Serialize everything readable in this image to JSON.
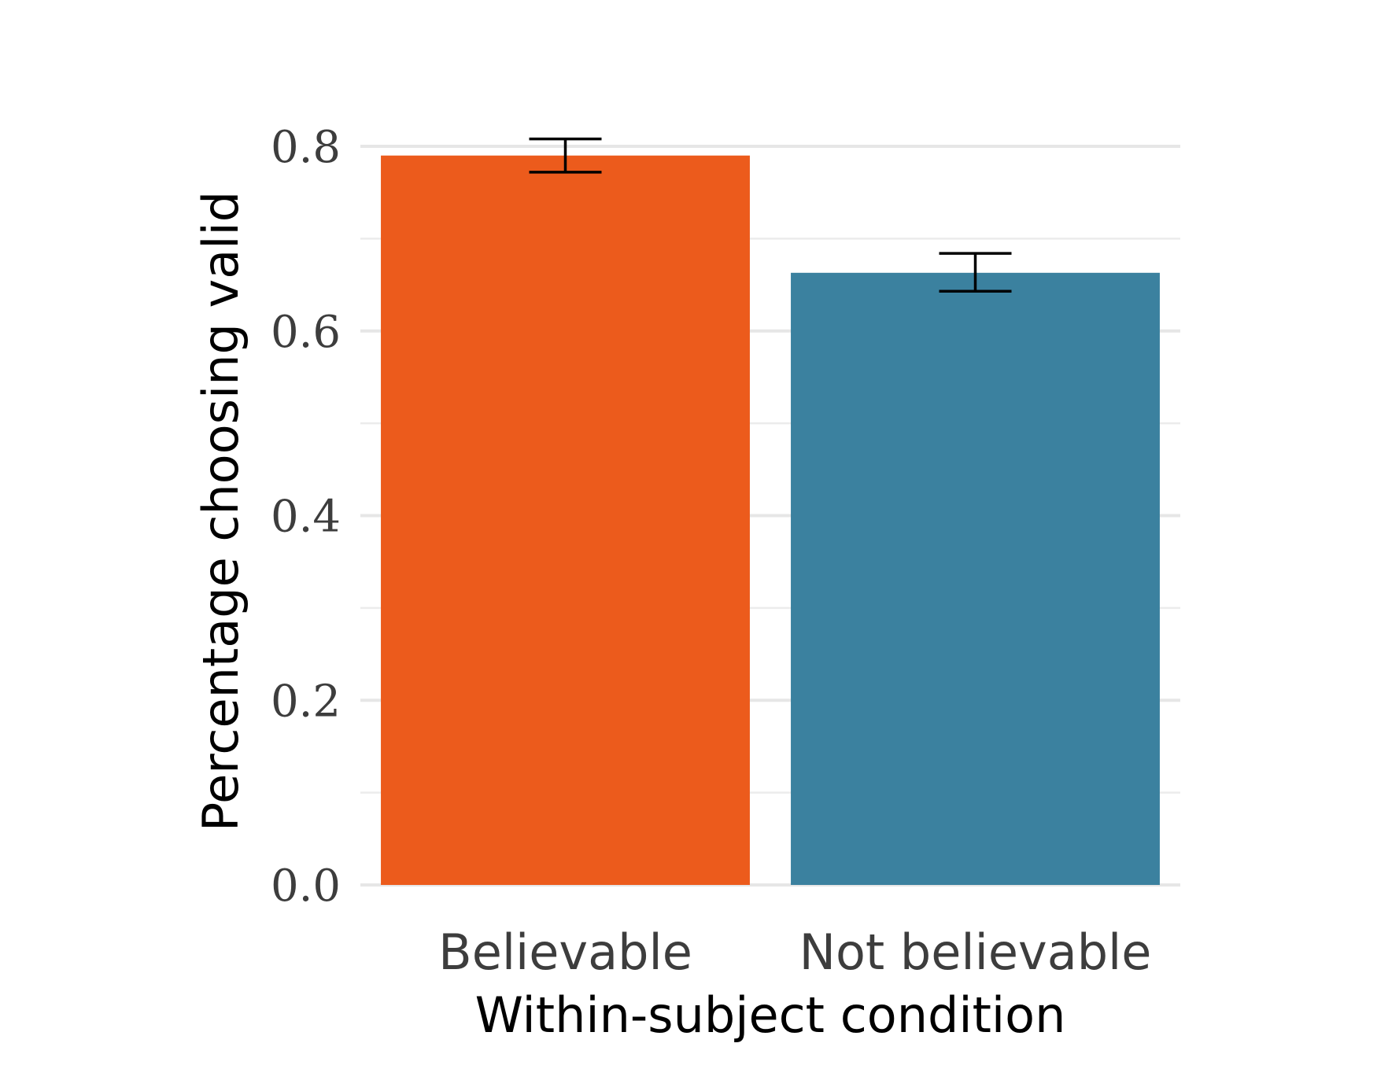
{
  "chart_data": {
    "type": "bar",
    "categories": [
      "Believable",
      "Not believable"
    ],
    "values": [
      0.79,
      0.663
    ],
    "error_bars": [
      {
        "lower": 0.772,
        "upper": 0.808
      },
      {
        "lower": 0.643,
        "upper": 0.684
      }
    ],
    "colors": [
      "#EC5B1C",
      "#3B819F"
    ],
    "xlabel": "Within-subject condition",
    "ylabel": "Percentage choosing valid",
    "ylim": [
      0,
      0.8
    ],
    "yticks": [
      0.0,
      0.2,
      0.4,
      0.6,
      0.8
    ],
    "ytick_labels": [
      "0.0",
      "0.2",
      "0.4",
      "0.6",
      "0.8"
    ],
    "grid": true,
    "legend": "none"
  }
}
